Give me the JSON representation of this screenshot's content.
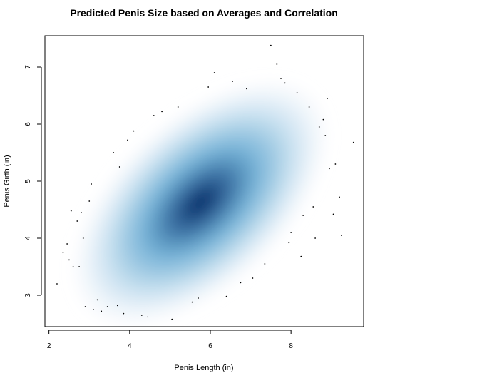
{
  "chart_data": {
    "type": "heatmap",
    "subtype": "smoothed-density-scatter",
    "title": "Predicted Penis Size based on Averages and Correlation",
    "xlabel": "Penis Length (in)",
    "ylabel": "Penis Girth (in)",
    "xlim": [
      1.9,
      9.8
    ],
    "ylim": [
      2.45,
      7.55
    ],
    "xticks": [
      2,
      4,
      6,
      8
    ],
    "yticks": [
      3,
      4,
      5,
      6,
      7
    ],
    "grid": false,
    "legend": "none",
    "density": {
      "center": [
        5.75,
        4.62
      ],
      "sd": [
        1.15,
        0.78
      ],
      "correlation": 0.55
    },
    "colors": {
      "density_low": "#ffffff",
      "density_mid": "#6baed6",
      "density_high": "#08306b",
      "points": "#000000",
      "axis": "#000000"
    },
    "outlier_points": [
      [
        2.2,
        3.2
      ],
      [
        2.35,
        3.75
      ],
      [
        2.45,
        3.9
      ],
      [
        2.5,
        3.62
      ],
      [
        2.55,
        4.48
      ],
      [
        2.6,
        3.5
      ],
      [
        2.7,
        4.3
      ],
      [
        2.75,
        3.5
      ],
      [
        2.8,
        4.45
      ],
      [
        2.85,
        4.0
      ],
      [
        2.9,
        2.8
      ],
      [
        3.0,
        4.65
      ],
      [
        3.05,
        4.95
      ],
      [
        3.1,
        2.75
      ],
      [
        3.2,
        2.92
      ],
      [
        3.3,
        2.72
      ],
      [
        3.45,
        2.8
      ],
      [
        3.6,
        5.5
      ],
      [
        3.7,
        2.82
      ],
      [
        3.75,
        5.25
      ],
      [
        3.85,
        2.68
      ],
      [
        3.95,
        5.72
      ],
      [
        4.1,
        5.88
      ],
      [
        4.3,
        2.65
      ],
      [
        4.45,
        2.62
      ],
      [
        4.6,
        6.15
      ],
      [
        4.8,
        6.22
      ],
      [
        5.05,
        2.58
      ],
      [
        5.2,
        6.3
      ],
      [
        5.55,
        2.88
      ],
      [
        5.7,
        2.95
      ],
      [
        5.95,
        6.65
      ],
      [
        6.1,
        6.9
      ],
      [
        6.4,
        2.98
      ],
      [
        6.55,
        6.75
      ],
      [
        6.75,
        3.22
      ],
      [
        6.9,
        6.62
      ],
      [
        7.05,
        3.3
      ],
      [
        7.35,
        3.55
      ],
      [
        7.5,
        7.38
      ],
      [
        7.65,
        7.05
      ],
      [
        7.75,
        6.8
      ],
      [
        7.85,
        6.72
      ],
      [
        7.95,
        3.92
      ],
      [
        8.0,
        4.1
      ],
      [
        8.15,
        6.55
      ],
      [
        8.25,
        3.68
      ],
      [
        8.3,
        4.4
      ],
      [
        8.45,
        6.3
      ],
      [
        8.55,
        4.55
      ],
      [
        8.6,
        4.0
      ],
      [
        8.7,
        5.95
      ],
      [
        8.8,
        6.08
      ],
      [
        8.85,
        5.8
      ],
      [
        8.9,
        6.45
      ],
      [
        8.95,
        5.22
      ],
      [
        9.05,
        4.42
      ],
      [
        9.1,
        5.3
      ],
      [
        9.2,
        4.72
      ],
      [
        9.25,
        4.05
      ],
      [
        9.55,
        5.68
      ]
    ]
  }
}
